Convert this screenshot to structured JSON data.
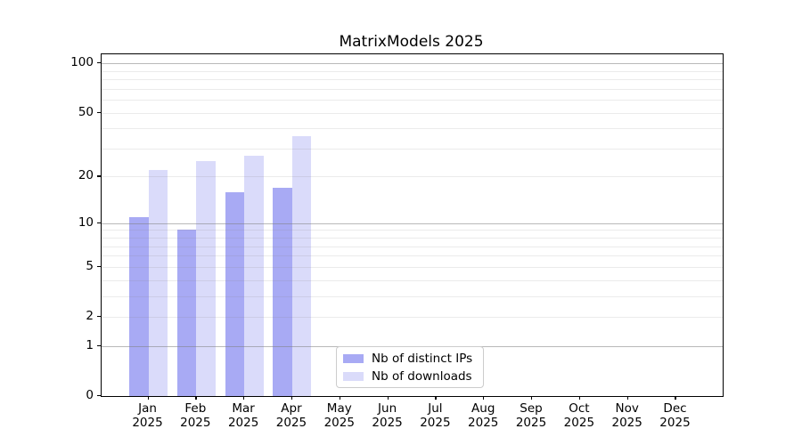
{
  "chart_data": {
    "type": "bar",
    "title": "MatrixModels 2025",
    "scale": "log1p",
    "ylim": [
      0,
      113
    ],
    "grid": "on",
    "legend_position": "lower center",
    "categories": [
      {
        "label": "Jan",
        "sub": "2025"
      },
      {
        "label": "Feb",
        "sub": "2025"
      },
      {
        "label": "Mar",
        "sub": "2025"
      },
      {
        "label": "Apr",
        "sub": "2025"
      },
      {
        "label": "May",
        "sub": "2025"
      },
      {
        "label": "Jun",
        "sub": "2025"
      },
      {
        "label": "Jul",
        "sub": "2025"
      },
      {
        "label": "Aug",
        "sub": "2025"
      },
      {
        "label": "Sep",
        "sub": "2025"
      },
      {
        "label": "Oct",
        "sub": "2025"
      },
      {
        "label": "Nov",
        "sub": "2025"
      },
      {
        "label": "Dec",
        "sub": "2025"
      }
    ],
    "series": [
      {
        "name": "Nb of distinct IPs",
        "color": "#a8aaf4",
        "values": [
          11,
          9,
          16,
          17,
          null,
          null,
          null,
          null,
          null,
          null,
          null,
          null
        ]
      },
      {
        "name": "Nb of downloads",
        "color": "#dadbfa",
        "values": [
          22,
          25,
          27,
          36,
          null,
          null,
          null,
          null,
          null,
          null,
          null,
          null
        ]
      }
    ],
    "y_ticks": [
      0,
      1,
      2,
      5,
      10,
      20,
      50,
      100
    ],
    "y_tick_labels": [
      "0",
      "1",
      "2",
      "5",
      "10",
      "20",
      "50",
      "100"
    ],
    "major_gridline_values": [
      1,
      10,
      100
    ],
    "minor_gridline_values": [
      2,
      3,
      4,
      5,
      6,
      7,
      8,
      9,
      20,
      30,
      40,
      50,
      60,
      70,
      80,
      90
    ],
    "style": {
      "spine_color": "#000000",
      "major_grid_color": "rgba(128,128,128,0.55)",
      "minor_grid_color": "rgba(128,128,128,0.16)",
      "background": "#ffffff"
    }
  }
}
